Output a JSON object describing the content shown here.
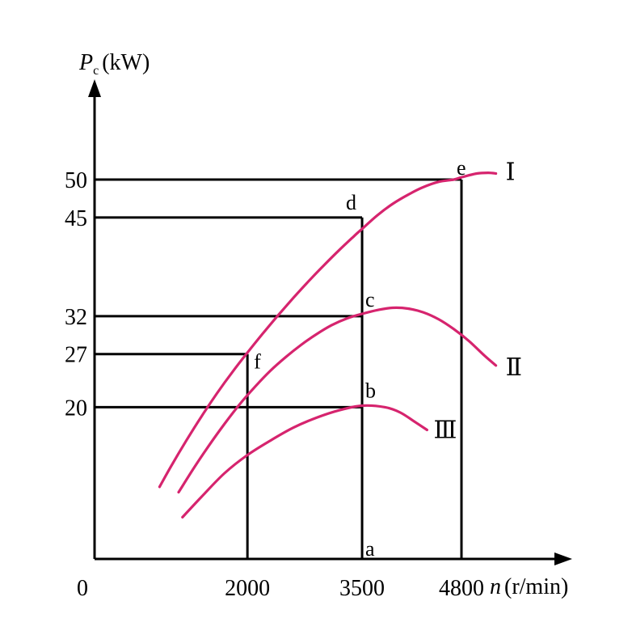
{
  "chart_data": {
    "type": "line",
    "title": "",
    "xlabel_symbol": "n",
    "xlabel_unit": "(r/min)",
    "ylabel_symbol": "P",
    "ylabel_subscript": "c",
    "ylabel_unit": "(kW)",
    "origin_label": "0",
    "xlim": [
      0,
      5500
    ],
    "ylim": [
      0,
      60
    ],
    "x_ticks": [
      2000,
      3500,
      4800
    ],
    "y_ticks": [
      20,
      27,
      32,
      45,
      50
    ],
    "grid": false,
    "legend": "none",
    "curve_color": "#d6246e",
    "series": [
      {
        "label": "Ⅰ",
        "x": [
          850,
          1000,
          1200,
          1400,
          1600,
          1800,
          2000,
          2200,
          2400,
          2600,
          2800,
          3000,
          3200,
          3400,
          3500,
          3700,
          3900,
          4100,
          4300,
          4500,
          4700,
          4800,
          5000,
          5150,
          5250
        ],
        "y": [
          9.5,
          12.2,
          15.6,
          18.8,
          21.8,
          24.6,
          27.2,
          29.7,
          32.1,
          34.4,
          36.6,
          38.7,
          40.7,
          42.6,
          43.5,
          45.3,
          46.8,
          48.0,
          49.0,
          49.7,
          50.0,
          50.3,
          50.8,
          50.9,
          50.8
        ]
      },
      {
        "label": "Ⅱ",
        "x": [
          1100,
          1300,
          1500,
          1700,
          1900,
          2100,
          2300,
          2500,
          2700,
          2900,
          3100,
          3300,
          3500,
          3700,
          3900,
          4100,
          4300,
          4500,
          4700,
          4900,
          5100,
          5250
        ],
        "y": [
          8.8,
          12.0,
          15.0,
          17.8,
          20.4,
          22.7,
          24.8,
          26.6,
          28.2,
          29.6,
          30.8,
          31.7,
          32.3,
          32.8,
          33.1,
          33.0,
          32.5,
          31.6,
          30.3,
          28.7,
          26.8,
          25.5
        ]
      },
      {
        "label": "Ⅲ",
        "x": [
          1150,
          1400,
          1700,
          2000,
          2300,
          2600,
          2900,
          3200,
          3500,
          3800,
          4000,
          4200,
          4350
        ],
        "y": [
          5.5,
          8.2,
          11.3,
          13.7,
          15.6,
          17.3,
          18.6,
          19.6,
          20.2,
          20.0,
          19.3,
          18.0,
          17.0
        ]
      }
    ],
    "points": [
      {
        "label": "a",
        "x": 3500,
        "y": 0
      },
      {
        "label": "b",
        "x": 3500,
        "y": 20
      },
      {
        "label": "c",
        "x": 3500,
        "y": 32
      },
      {
        "label": "d",
        "x": 3500,
        "y": 45
      },
      {
        "label": "e",
        "x": 4800,
        "y": 50
      },
      {
        "label": "f",
        "x": 2000,
        "y": 27
      }
    ],
    "guide_lines": [
      {
        "from": [
          0,
          50
        ],
        "to": [
          4800,
          50
        ]
      },
      {
        "from": [
          4800,
          50
        ],
        "to": [
          4800,
          0
        ]
      },
      {
        "from": [
          0,
          45
        ],
        "to": [
          3500,
          45
        ]
      },
      {
        "from": [
          3500,
          45
        ],
        "to": [
          3500,
          0
        ]
      },
      {
        "from": [
          0,
          32
        ],
        "to": [
          3500,
          32
        ]
      },
      {
        "from": [
          0,
          27
        ],
        "to": [
          2000,
          27
        ]
      },
      {
        "from": [
          2000,
          27
        ],
        "to": [
          2000,
          0
        ]
      },
      {
        "from": [
          0,
          20
        ],
        "to": [
          3500,
          20
        ]
      }
    ]
  }
}
